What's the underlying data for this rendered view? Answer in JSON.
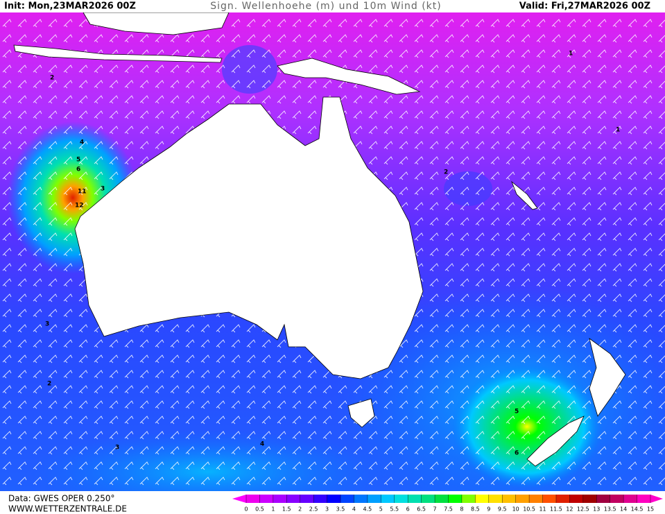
{
  "header": {
    "init": "Init: Mon,23MAR2026 00Z",
    "title": "Sign. Wellenhoehe (m) und 10m Wind (kt)",
    "valid": "Valid: Fri,27MAR2026 00Z"
  },
  "footer": {
    "source": "Data: GWES OPER 0.250°",
    "site": "WWW.WETTERZENTRALE.DE"
  },
  "colorbar": {
    "ticks": [
      0,
      0.5,
      1,
      1.5,
      2,
      2.5,
      3,
      3.5,
      4,
      4.5,
      5,
      5.5,
      6,
      6.5,
      7,
      7.5,
      8,
      8.5,
      9,
      9.5,
      10,
      10.5,
      11,
      11.5,
      12,
      12.5,
      13,
      13.5,
      14,
      14.5,
      15
    ],
    "colors": [
      "#ee00ee",
      "#cc00ff",
      "#aa00ff",
      "#8800ff",
      "#6600ff",
      "#3300ff",
      "#0000ff",
      "#0044ff",
      "#0077ff",
      "#00a0ff",
      "#00c8ff",
      "#00e0e0",
      "#00e0b0",
      "#00e080",
      "#00e040",
      "#00ff00",
      "#80ff00",
      "#ffff00",
      "#ffe000",
      "#ffc000",
      "#ffa000",
      "#ff8000",
      "#ff5000",
      "#e02000",
      "#c00000",
      "#a00000",
      "#a00040",
      "#c00060",
      "#e00090",
      "#ff00c0"
    ],
    "under_color": "#ff00ff",
    "over_color": "#ff00cc"
  },
  "contour_labels": [
    "2",
    "3",
    "4",
    "5",
    "6",
    "11",
    "12",
    "1",
    "1",
    "2",
    "2",
    "3",
    "5",
    "6",
    "4",
    "3"
  ]
}
